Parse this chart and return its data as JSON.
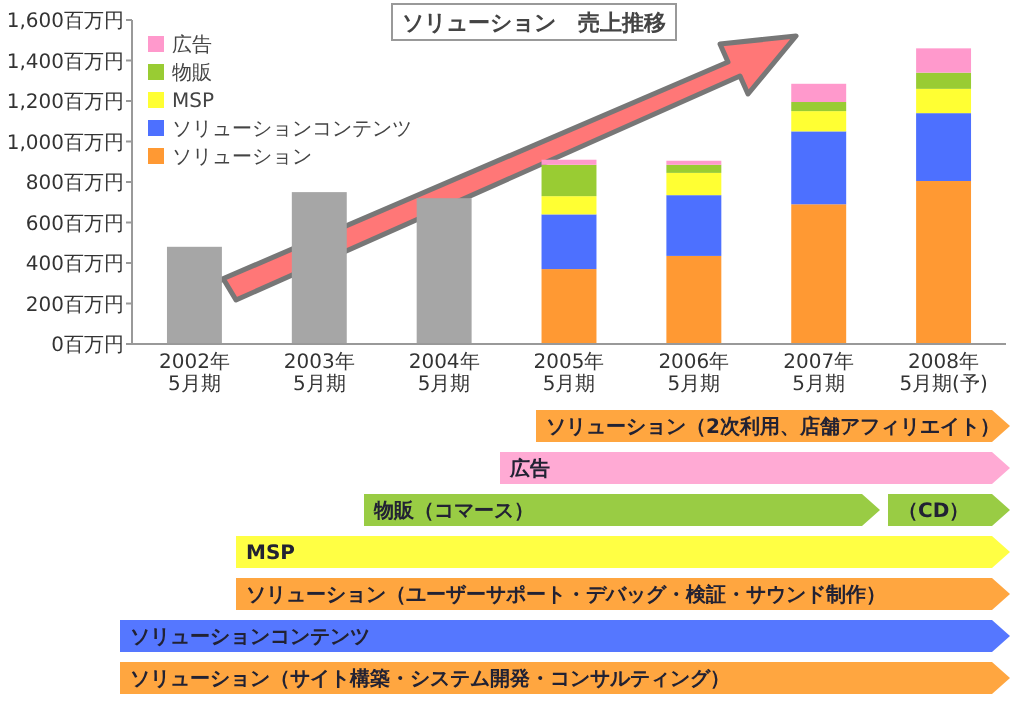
{
  "chart_data": {
    "type": "bar",
    "title": "ソリューション　売上推移",
    "stacked": true,
    "legend": "top left",
    "grid": false,
    "categories": [
      "2002年5月期",
      "2003年5月期",
      "2004年5月期",
      "2005年5月期",
      "2006年5月期",
      "2007年5月期",
      "2008年5月期(予)"
    ],
    "series": [
      {
        "color": "#a6a6a6",
        "values": [
          480,
          750,
          720,
          null,
          null,
          null,
          null
        ]
      },
      {
        "name": "ソリューション",
        "color": "#ff9933",
        "values": [
          null,
          null,
          null,
          370,
          435,
          690,
          805
        ]
      },
      {
        "name": "ソリューションコンテンツ",
        "color": "#4d70ff",
        "values": [
          null,
          null,
          null,
          270,
          300,
          360,
          335
        ]
      },
      {
        "name": "MSP",
        "color": "#ffff33",
        "values": [
          null,
          null,
          null,
          90,
          110,
          100,
          120
        ]
      },
      {
        "name": "物販",
        "color": "#99cc33",
        "values": [
          null,
          null,
          null,
          155,
          40,
          45,
          80
        ]
      },
      {
        "name": "広告",
        "color": "#ff99cc",
        "values": [
          null,
          null,
          null,
          25,
          20,
          90,
          120
        ]
      }
    ],
    "ylim": [
      0,
      1600
    ],
    "yticks": [
      {
        "value": 0,
        "label": "0百万円"
      },
      {
        "value": 200,
        "label": "200百万円"
      },
      {
        "value": 400,
        "label": "400百万円"
      },
      {
        "value": 600,
        "label": "600百万円"
      },
      {
        "value": 800,
        "label": "800百万円"
      },
      {
        "value": 1000,
        "label": "1,000百万円"
      },
      {
        "value": 1200,
        "label": "1,200百万円"
      },
      {
        "value": 1400,
        "label": "1,400百万円"
      },
      {
        "value": 1600,
        "label": "1,600百万円"
      }
    ],
    "annotations": [
      "ソリューション（2次利用、店舗アフィリエイト）",
      "広告",
      "物販（コマース）",
      "（CD）",
      "MSP",
      "ソリューション（ユーザーサポート・デバッグ・検証・サウンド制作）",
      "ソリューションコンテンツ",
      "ソリューション（サイト構築・システム開発・コンサルティング）"
    ]
  }
}
